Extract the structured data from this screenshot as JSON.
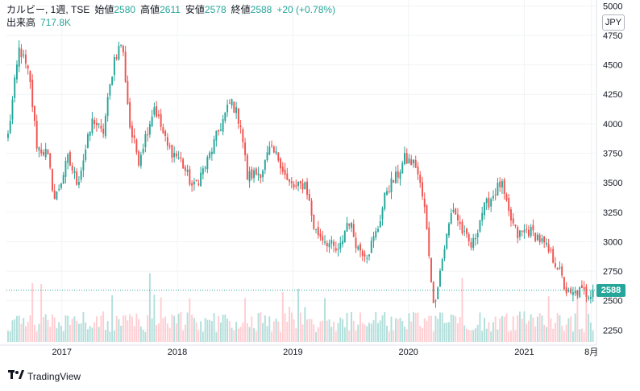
{
  "legend": {
    "symbol": "カルビー, 1週, TSE",
    "open_label": "始値",
    "open": "2580",
    "high_label": "高値",
    "high": "2611",
    "low_label": "安値",
    "low": "2578",
    "close_label": "終値",
    "close": "2588",
    "change": "+20 (+0.78%)",
    "volume_label": "出来高",
    "volume": "717.8K"
  },
  "currency": "JPY",
  "last_price": "2588",
  "brand": {
    "mark_icon": "tradingview-logo-icon",
    "name": "TradingView"
  },
  "colors": {
    "up": "#26a69a",
    "down": "#ef5350",
    "up_vol": "#b2dfdb",
    "down_vol": "#ffcdd2"
  },
  "chart_data": {
    "type": "candlestick",
    "interval": "1 week",
    "y_ticks": [
      2250,
      2500,
      2750,
      3000,
      3250,
      3500,
      3750,
      4000,
      4250,
      4500,
      4750,
      5000
    ],
    "x_ticks": [
      "2017",
      "2018",
      "2019",
      "2020",
      "2021",
      "8月"
    ],
    "last_close": 2588,
    "close_anchors": [
      [
        "2016-07-15",
        3900
      ],
      [
        "2016-08-20",
        4650
      ],
      [
        "2016-09-20",
        4400
      ],
      [
        "2016-10-15",
        3800
      ],
      [
        "2016-11-15",
        3750
      ],
      [
        "2016-12-10",
        3350
      ],
      [
        "2017-01-20",
        3700
      ],
      [
        "2017-02-20",
        3500
      ],
      [
        "2017-04-10",
        4050
      ],
      [
        "2017-05-10",
        3900
      ],
      [
        "2017-06-15",
        4550
      ],
      [
        "2017-07-10",
        4700
      ],
      [
        "2017-08-05",
        3950
      ],
      [
        "2017-09-01",
        3700
      ],
      [
        "2017-10-20",
        4150
      ],
      [
        "2017-12-01",
        3800
      ],
      [
        "2018-01-10",
        3700
      ],
      [
        "2018-02-20",
        3450
      ],
      [
        "2018-04-01",
        3650
      ],
      [
        "2018-05-20",
        4000
      ],
      [
        "2018-06-20",
        4200
      ],
      [
        "2018-07-20",
        4000
      ],
      [
        "2018-08-10",
        3550
      ],
      [
        "2018-09-25",
        3600
      ],
      [
        "2018-10-20",
        3780
      ],
      [
        "2018-11-20",
        3700
      ],
      [
        "2018-12-15",
        3500
      ],
      [
        "2019-01-10",
        3450
      ],
      [
        "2019-02-10",
        3500
      ],
      [
        "2019-03-10",
        3100
      ],
      [
        "2019-04-20",
        3000
      ],
      [
        "2019-05-25",
        2900
      ],
      [
        "2019-06-25",
        3200
      ],
      [
        "2019-07-25",
        2950
      ],
      [
        "2019-08-25",
        2900
      ],
      [
        "2019-09-25",
        3100
      ],
      [
        "2019-10-25",
        3450
      ],
      [
        "2019-11-25",
        3550
      ],
      [
        "2019-12-20",
        3700
      ],
      [
        "2020-01-25",
        3650
      ],
      [
        "2020-02-20",
        3300
      ],
      [
        "2020-03-10",
        2800
      ],
      [
        "2020-03-20",
        2450
      ],
      [
        "2020-04-20",
        2900
      ],
      [
        "2020-05-20",
        3300
      ],
      [
        "2020-06-25",
        3050
      ],
      [
        "2020-07-20",
        2950
      ],
      [
        "2020-08-20",
        3250
      ],
      [
        "2020-09-25",
        3400
      ],
      [
        "2020-10-20",
        3500
      ],
      [
        "2020-11-10",
        3250
      ],
      [
        "2020-12-10",
        3050
      ],
      [
        "2021-01-10",
        3100
      ],
      [
        "2021-02-10",
        3050
      ],
      [
        "2021-03-10",
        2950
      ],
      [
        "2021-04-15",
        2800
      ],
      [
        "2021-05-10",
        2600
      ],
      [
        "2021-05-25",
        2530
      ],
      [
        "2021-06-20",
        2580
      ],
      [
        "2021-07-20",
        2560
      ],
      [
        "2021-08-06",
        2588
      ]
    ]
  }
}
